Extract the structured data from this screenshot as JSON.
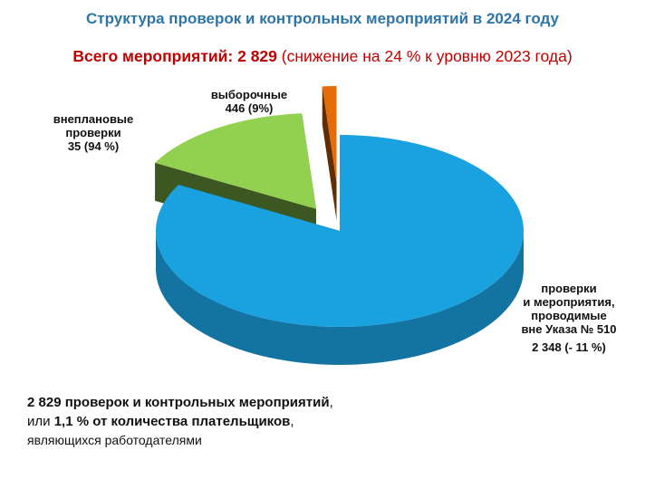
{
  "title": "Структура проверок и контрольных мероприятий в 2024 году",
  "subtitle": {
    "bold": "Всего мероприятий:  2 829",
    "rest": " (снижение на 24 % к уровню 2023 года)"
  },
  "chart_data": {
    "type": "pie",
    "style": "3d-exploded",
    "slices": [
      {
        "label_lines": [
          "проверки",
          "и мероприятия,",
          "проводимые",
          "вне Указа № 510"
        ],
        "value": 2348,
        "value_text": "2 348 (- 11 %)",
        "color": "#1AA1E0"
      },
      {
        "label_lines": [
          "выборочные"
        ],
        "value": 446,
        "value_text": "446 (9%)",
        "color": "#92D050"
      },
      {
        "label_lines": [
          "внеплановые",
          "проверки"
        ],
        "value": 35,
        "value_text": "35 (94 %)",
        "color": "#E46C0A"
      }
    ]
  },
  "note": {
    "line1_bold": "2 829 проверок и контрольных мероприятий",
    "line1_tail": ",",
    "line2_start": "или ",
    "line2_bold": " 1,1 % от количества плательщиков",
    "line2_tail": ",",
    "line3": "являющихся  работодателями"
  }
}
